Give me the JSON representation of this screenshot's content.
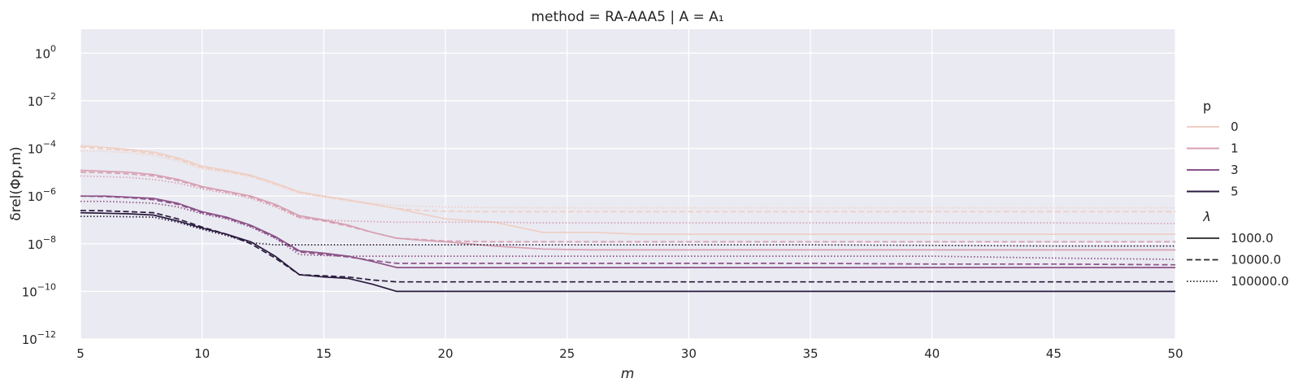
{
  "chart_data": {
    "type": "line",
    "title": "method = RA-AAA5 | A = A₁",
    "xlabel": "m",
    "ylabel": "δrel(Φp,m)",
    "x": [
      5,
      6,
      7,
      8,
      9,
      10,
      11,
      12,
      13,
      14,
      15,
      16,
      17,
      18,
      19,
      20,
      22,
      24,
      26,
      28,
      30,
      35,
      40,
      45,
      50
    ],
    "xlim": [
      5,
      50
    ],
    "ylim": [
      1e-12,
      10
    ],
    "yscale": "log",
    "xticks": [
      "5",
      "10",
      "15",
      "20",
      "25",
      "30",
      "35",
      "40",
      "45",
      "50"
    ],
    "yticks": [
      {
        "base": "10",
        "exp": "0"
      },
      {
        "base": "10",
        "exp": "−2"
      },
      {
        "base": "10",
        "exp": "−4"
      },
      {
        "base": "10",
        "exp": "−6"
      },
      {
        "base": "10",
        "exp": "−8"
      },
      {
        "base": "10",
        "exp": "−10"
      },
      {
        "base": "10",
        "exp": "−12"
      }
    ],
    "grid": true,
    "legend_placement": "right",
    "hue_title": "p",
    "style_title": "λ",
    "hue_levels": [
      {
        "label": "0",
        "color": "#efcfc4"
      },
      {
        "label": "1",
        "color": "#d7a0b2"
      },
      {
        "label": "3",
        "color": "#8c5388"
      },
      {
        "label": "5",
        "color": "#2a1b3d"
      }
    ],
    "style_levels": [
      {
        "label": "1000.0",
        "dash": "solid"
      },
      {
        "label": "10000.0",
        "dash": "dashed"
      },
      {
        "label": "100000.0",
        "dash": "dotted"
      }
    ],
    "series": [
      {
        "p": "0",
        "lambda": "1000.0",
        "values": [
          0.00013,
          0.00011,
          9e-05,
          7e-05,
          4e-05,
          1.8e-05,
          1.2e-05,
          7.5e-06,
          3.5e-06,
          1.5e-06,
          1e-06,
          7e-07,
          4.5e-07,
          3e-07,
          1.8e-07,
          1.1e-07,
          8e-08,
          3e-08,
          3e-08,
          2.5e-08,
          2.5e-08,
          2.5e-08,
          2.5e-08,
          2.5e-08,
          2.5e-08
        ]
      },
      {
        "p": "0",
        "lambda": "10000.0",
        "values": [
          0.00011,
          9.5e-05,
          8e-05,
          6e-05,
          3.5e-05,
          1.6e-05,
          1.1e-05,
          7e-06,
          3.3e-06,
          1.4e-06,
          9.5e-07,
          6.5e-07,
          4.5e-07,
          3e-07,
          2.5e-07,
          2.3e-07,
          2.2e-07,
          2.2e-07,
          2.2e-07,
          2.2e-07,
          2.2e-07,
          2.2e-07,
          2.2e-07,
          2.2e-07,
          2.2e-07
        ]
      },
      {
        "p": "0",
        "lambda": "100000.0",
        "values": [
          8e-05,
          7.5e-05,
          6.5e-05,
          5e-05,
          3e-05,
          1.4e-05,
          1e-05,
          6.5e-06,
          3e-06,
          1.3e-06,
          9e-07,
          6.5e-07,
          5e-07,
          4e-07,
          3.7e-07,
          3.5e-07,
          3.3e-07,
          3.2e-07,
          3.2e-07,
          3.2e-07,
          3.2e-07,
          3.2e-07,
          3.2e-07,
          3.2e-07,
          3.2e-07
        ]
      },
      {
        "p": "1",
        "lambda": "1000.0",
        "values": [
          1.2e-05,
          1.1e-05,
          1e-05,
          8e-06,
          5e-06,
          2.5e-06,
          1.6e-06,
          1e-06,
          4.5e-07,
          1.5e-07,
          1e-07,
          6e-08,
          3e-08,
          1.7e-08,
          1.4e-08,
          1.2e-08,
          8e-09,
          6e-09,
          5.5e-09,
          5.5e-09,
          5.5e-09,
          5.5e-09,
          5.5e-09,
          5.5e-09,
          5.5e-09
        ]
      },
      {
        "p": "1",
        "lambda": "10000.0",
        "values": [
          1e-05,
          9.5e-06,
          8.5e-06,
          7e-06,
          4.5e-06,
          2.3e-06,
          1.5e-06,
          9e-07,
          4e-07,
          1.3e-07,
          9e-08,
          5.5e-08,
          3e-08,
          1.7e-08,
          1.5e-08,
          1.3e-08,
          1.2e-08,
          1.2e-08,
          1.2e-08,
          1.2e-08,
          1.2e-08,
          1.2e-08,
          1.2e-08,
          1.2e-08,
          1.2e-08
        ]
      },
      {
        "p": "1",
        "lambda": "100000.0",
        "values": [
          7e-06,
          6.5e-06,
          6e-06,
          5e-06,
          3.5e-06,
          2e-06,
          1.3e-06,
          8e-07,
          3.5e-07,
          1.2e-07,
          1e-07,
          9e-08,
          8.5e-08,
          8e-08,
          8e-08,
          8e-08,
          8e-08,
          7.5e-08,
          7.5e-08,
          7.5e-08,
          7.5e-08,
          7.5e-08,
          7.5e-08,
          7.5e-08,
          7e-08
        ]
      },
      {
        "p": "3",
        "lambda": "1000.0",
        "values": [
          1e-06,
          1e-06,
          9e-07,
          8e-07,
          5e-07,
          2.2e-07,
          1.3e-07,
          6e-08,
          2e-08,
          5e-09,
          4e-09,
          3e-09,
          1.8e-09,
          1e-09,
          1e-09,
          1e-09,
          1e-09,
          1e-09,
          1e-09,
          1e-09,
          1e-09,
          1e-09,
          1e-09,
          1e-09,
          1e-09
        ]
      },
      {
        "p": "3",
        "lambda": "10000.0",
        "values": [
          1e-06,
          9.5e-07,
          8.5e-07,
          7e-07,
          4.5e-07,
          2e-07,
          1.2e-07,
          5.5e-08,
          1.8e-08,
          4.5e-09,
          3.5e-09,
          2.8e-09,
          2e-09,
          1.5e-09,
          1.5e-09,
          1.5e-09,
          1.5e-09,
          1.5e-09,
          1.5e-09,
          1.5e-09,
          1.5e-09,
          1.5e-09,
          1.4e-09,
          1.4e-09,
          1.3e-09
        ]
      },
      {
        "p": "3",
        "lambda": "100000.0",
        "values": [
          6e-07,
          6e-07,
          5.5e-07,
          5e-07,
          3.5e-07,
          1.8e-07,
          1.1e-07,
          5e-08,
          1.7e-08,
          3.5e-09,
          3.2e-09,
          3e-09,
          3e-09,
          3e-09,
          3e-09,
          3e-09,
          3e-09,
          3e-09,
          3e-09,
          3e-09,
          3e-09,
          3e-09,
          3e-09,
          2.5e-09,
          2.2e-09
        ]
      },
      {
        "p": "5",
        "lambda": "1000.0",
        "values": [
          2e-07,
          1.9e-07,
          1.8e-07,
          1.6e-07,
          9e-08,
          4.5e-08,
          2.5e-08,
          1.2e-08,
          3e-09,
          5e-10,
          4e-10,
          3.5e-10,
          2e-10,
          1e-10,
          1e-10,
          1e-10,
          1e-10,
          1e-10,
          1e-10,
          1e-10,
          1e-10,
          1e-10,
          1e-10,
          1e-10,
          1e-10
        ]
      },
      {
        "p": "5",
        "lambda": "10000.0",
        "values": [
          2.5e-07,
          2.4e-07,
          2.2e-07,
          2e-07,
          1.1e-07,
          5e-08,
          2.5e-08,
          1e-08,
          2.5e-09,
          5e-10,
          4.5e-10,
          4e-10,
          3e-10,
          2.5e-10,
          2.5e-10,
          2.5e-10,
          2.5e-10,
          2.5e-10,
          2.5e-10,
          2.5e-10,
          2.5e-10,
          2.5e-10,
          2.5e-10,
          2.5e-10,
          2.5e-10
        ]
      },
      {
        "p": "5",
        "lambda": "100000.0",
        "values": [
          1.4e-07,
          1.4e-07,
          1.35e-07,
          1.3e-07,
          8e-08,
          4e-08,
          2.2e-08,
          1.1e-08,
          9e-09,
          9e-09,
          9e-09,
          9e-09,
          9e-09,
          9e-09,
          9e-09,
          9e-09,
          9e-09,
          9e-09,
          9e-09,
          9e-09,
          9e-09,
          9e-09,
          8.5e-09,
          8e-09,
          8e-09
        ]
      }
    ]
  }
}
